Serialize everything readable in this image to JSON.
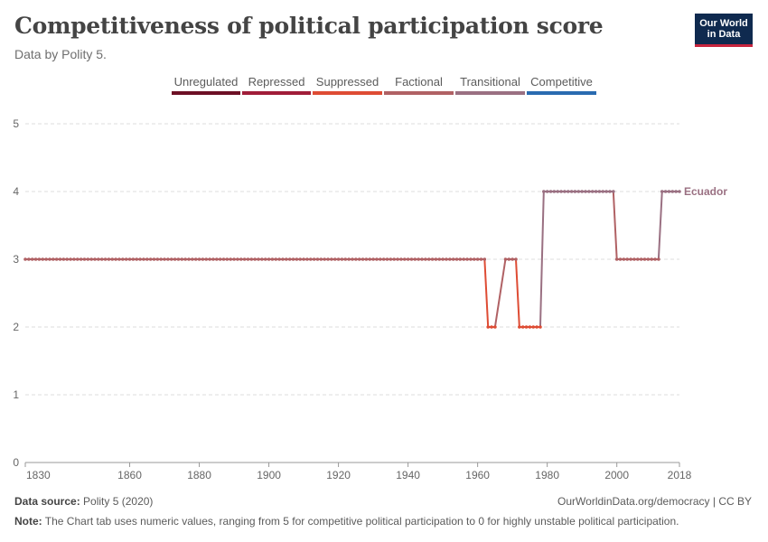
{
  "header": {
    "title": "Competitiveness of political participation score",
    "subtitle": "Data by Polity 5.",
    "logo_line1": "Our World",
    "logo_line2": "in Data"
  },
  "footer": {
    "source_label": "Data source:",
    "source_value": "Polity 5 (2020)",
    "url": "OurWorldinData.org/democracy | CC BY",
    "note_label": "Note:",
    "note_text": "The Chart tab uses numeric values, ranging from 5 for competitive political participation to 0 for highly unstable political participation."
  },
  "colors": {
    "Unregulated": "#6d0f25",
    "Repressed": "#a01d39",
    "Suppressed": "#de4c34",
    "Factional": "#b06164",
    "Transitional": "#9a7082",
    "Competitive": "#2a6bb0",
    "grid": "#dddddd",
    "axis": "#666666"
  },
  "chart_data": {
    "type": "line",
    "title": "Competitiveness of political participation score",
    "subtitle": "Data by Polity 5.",
    "xlabel": "",
    "ylabel": "",
    "xlim": [
      1830,
      2018
    ],
    "ylim": [
      0,
      5
    ],
    "x_ticks": [
      1830,
      1860,
      1880,
      1900,
      1920,
      1940,
      1960,
      1980,
      2000,
      2018
    ],
    "y_ticks": [
      0,
      1,
      2,
      3,
      4,
      5
    ],
    "grid": true,
    "legend": {
      "placement": "top",
      "entries": [
        "Unregulated",
        "Repressed",
        "Suppressed",
        "Factional",
        "Transitional",
        "Competitive"
      ]
    },
    "series": [
      {
        "name": "Ecuador",
        "segments": [
          {
            "x_start": 1830,
            "x_end": 1962,
            "y": 3
          },
          {
            "x_start": 1963,
            "x_end": 1965,
            "y": 2
          },
          {
            "x_start": 1968,
            "x_end": 1971,
            "y": 3
          },
          {
            "x_start": 1972,
            "x_end": 1978,
            "y": 2
          },
          {
            "x_start": 1979,
            "x_end": 1999,
            "y": 4
          },
          {
            "x_start": 2000,
            "x_end": 2012,
            "y": 3
          },
          {
            "x_start": 2013,
            "x_end": 2018,
            "y": 4
          }
        ]
      }
    ]
  }
}
